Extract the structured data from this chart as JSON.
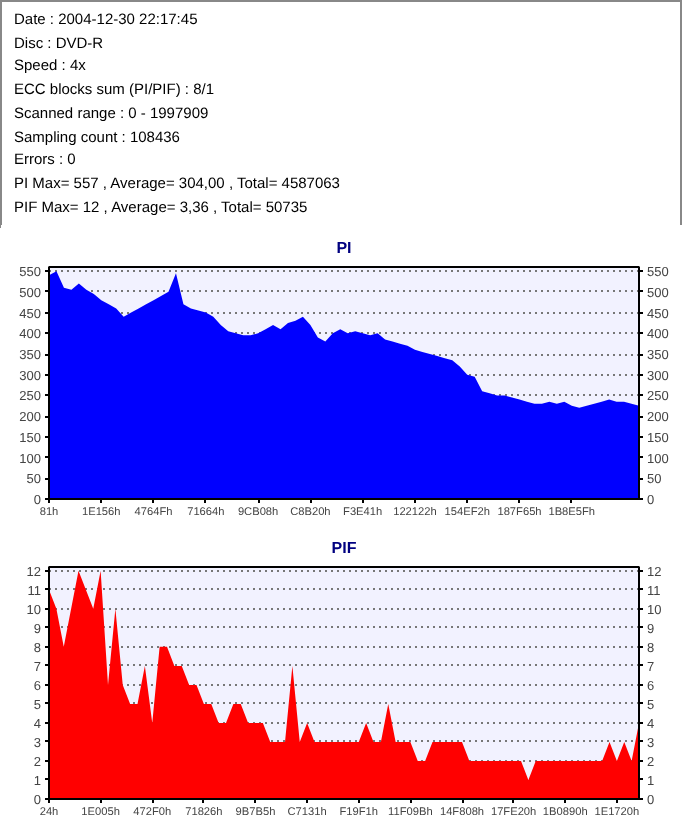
{
  "chart_data": [
    {
      "type": "other",
      "annotations": [
        "Date : 2004-12-30 22:17:45",
        "Disc : DVD-R",
        "Speed : 4x",
        "ECC blocks sum (PI/PIF) : 8/1",
        "Scanned range : 0 - 1997909",
        "Sampling count : 108436",
        "Errors : 0",
        "PI Max= 557 , Average= 304,00 , Total= 4587063",
        "PIF Max= 12 , Average= 3,36 , Total= 50735"
      ]
    },
    {
      "type": "area",
      "title": "PI",
      "color": "#0000ff",
      "grid": "y",
      "categories": [
        "81h",
        null,
        null,
        null,
        null,
        null,
        null,
        "1E156h",
        null,
        null,
        null,
        null,
        null,
        null,
        "4764Fh",
        null,
        null,
        null,
        null,
        null,
        null,
        "71664h",
        null,
        null,
        null,
        null,
        null,
        null,
        "9CB08h",
        null,
        null,
        null,
        null,
        null,
        null,
        "C8B20h",
        null,
        null,
        null,
        null,
        null,
        null,
        "F3E41h",
        null,
        null,
        null,
        null,
        null,
        null,
        "122122h",
        null,
        null,
        null,
        null,
        null,
        null,
        "154EF2h",
        null,
        null,
        null,
        null,
        null,
        null,
        "187F65h",
        null,
        null,
        null,
        null,
        null,
        null,
        "1B8E5Fh",
        null,
        null,
        null,
        null,
        null,
        null,
        null,
        null,
        null
      ],
      "values": [
        540,
        550,
        510,
        505,
        520,
        505,
        495,
        480,
        470,
        460,
        440,
        450,
        460,
        470,
        480,
        490,
        500,
        545,
        470,
        460,
        455,
        450,
        440,
        420,
        405,
        400,
        395,
        395,
        400,
        410,
        420,
        410,
        425,
        430,
        440,
        420,
        390,
        380,
        400,
        410,
        400,
        405,
        400,
        395,
        400,
        385,
        380,
        375,
        370,
        360,
        355,
        350,
        345,
        340,
        335,
        320,
        300,
        295,
        260,
        255,
        250,
        250,
        245,
        240,
        235,
        230,
        230,
        235,
        230,
        235,
        225,
        220,
        225,
        230,
        235,
        240,
        235,
        235,
        230,
        225
      ],
      "ylim": [
        0,
        560
      ],
      "yticks": [
        0,
        50,
        100,
        150,
        200,
        250,
        300,
        350,
        400,
        450,
        500,
        550
      ],
      "y2lim": [
        0,
        560
      ],
      "y2ticks": [
        0,
        50,
        100,
        150,
        200,
        250,
        300,
        350,
        400,
        450,
        500,
        550
      ]
    },
    {
      "type": "area",
      "title": "PIF",
      "color": "#ff0000",
      "grid": "y",
      "categories": [
        "24h",
        null,
        null,
        null,
        null,
        null,
        null,
        "1E005h",
        null,
        null,
        null,
        null,
        null,
        null,
        "472F0h",
        null,
        null,
        null,
        null,
        null,
        null,
        "71826h",
        null,
        null,
        null,
        null,
        null,
        null,
        "9B7B5h",
        null,
        null,
        null,
        null,
        null,
        null,
        "C7131h",
        null,
        null,
        null,
        null,
        null,
        null,
        "F19F1h",
        null,
        null,
        null,
        null,
        null,
        null,
        "11F09Bh",
        null,
        null,
        null,
        null,
        null,
        null,
        "14F808h",
        null,
        null,
        null,
        null,
        null,
        null,
        "17FE20h",
        null,
        null,
        null,
        null,
        null,
        null,
        "1B0890h",
        null,
        null,
        null,
        null,
        null,
        null,
        "1E1720h",
        null,
        null,
        null
      ],
      "values": [
        11,
        10,
        8,
        10,
        12,
        11,
        10,
        12,
        6,
        10,
        6,
        5,
        5,
        7,
        4,
        8,
        8,
        7,
        7,
        6,
        6,
        5,
        5,
        4,
        4,
        5,
        5,
        4,
        4,
        4,
        3,
        3,
        3,
        7,
        3,
        4,
        3,
        3,
        3,
        3,
        3,
        3,
        3,
        4,
        3,
        3,
        5,
        3,
        3,
        3,
        2,
        2,
        3,
        3,
        3,
        3,
        3,
        2,
        2,
        2,
        2,
        2,
        2,
        2,
        2,
        1,
        2,
        2,
        2,
        2,
        2,
        2,
        2,
        2,
        2,
        2,
        3,
        2,
        3,
        2,
        4
      ],
      "ylim": [
        0,
        12.2
      ],
      "yticks": [
        0,
        1,
        2,
        3,
        4,
        5,
        6,
        7,
        8,
        9,
        10,
        11,
        12
      ],
      "y2lim": [
        0,
        12.2
      ],
      "y2ticks": [
        0,
        1,
        2,
        3,
        4,
        5,
        6,
        7,
        8,
        9,
        10,
        11,
        12
      ]
    }
  ]
}
